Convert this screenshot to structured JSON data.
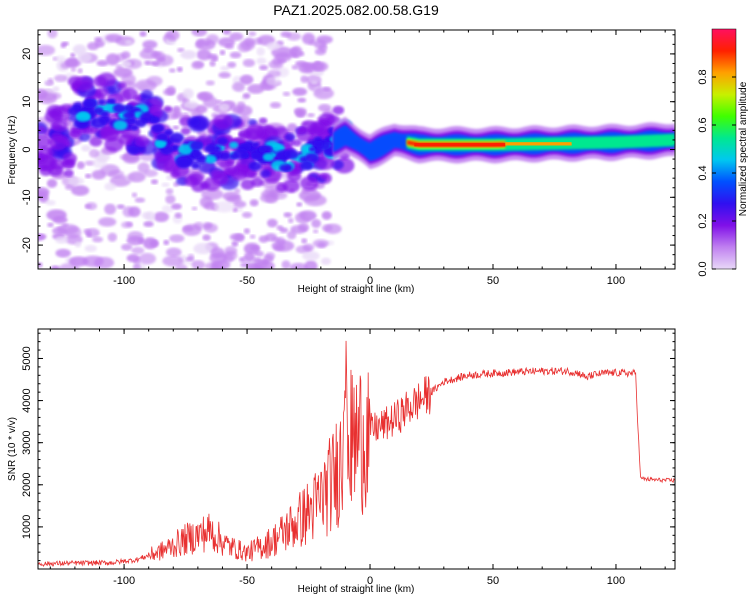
{
  "title": "PAZ1.2025.082.00.58.G19",
  "chart_data": [
    {
      "type": "heatmap",
      "xlabel": "Height of straight line (km)",
      "ylabel": "Frequency (Hz)",
      "xlim": [
        -135,
        124
      ],
      "ylim": [
        -25,
        25
      ],
      "xticks": [
        -100,
        -50,
        0,
        50,
        100
      ],
      "yticks": [
        -20,
        -10,
        0,
        10,
        20
      ],
      "colorbar": {
        "label": "Normalized spectral amplitude",
        "range": [
          0,
          1
        ],
        "ticks": [
          0.0,
          0.2,
          0.4,
          0.6,
          0.8
        ],
        "colormap": [
          "#e8d8f8",
          "#c080f0",
          "#8010e8",
          "#3010f0",
          "#0050ff",
          "#00c8f0",
          "#00e890",
          "#40ff00",
          "#c8f000",
          "#ffa000",
          "#ff2000",
          "#ff1060"
        ]
      },
      "ridge": {
        "description_points": [
          {
            "x": -120,
            "y": 8
          },
          {
            "x": -100,
            "y": 7.5
          },
          {
            "x": -88,
            "y": 5
          },
          {
            "x": -80,
            "y": 0.5
          },
          {
            "x": -70,
            "y": -1.5
          },
          {
            "x": -60,
            "y": 0
          },
          {
            "x": -50,
            "y": -1
          },
          {
            "x": -40,
            "y": -1
          },
          {
            "x": -30,
            "y": -2
          },
          {
            "x": -20,
            "y": 0
          },
          {
            "x": -10,
            "y": 3
          },
          {
            "x": 0,
            "y": -0.5
          },
          {
            "x": 10,
            "y": 2
          },
          {
            "x": 20,
            "y": 1
          },
          {
            "x": 50,
            "y": 1
          },
          {
            "x": 100,
            "y": 1.5
          },
          {
            "x": 124,
            "y": 2
          }
        ]
      }
    },
    {
      "type": "line",
      "xlabel": "Height of straight line (km)",
      "ylabel": "SNR (10 * v/v)",
      "xlim": [
        -135,
        124
      ],
      "ylim": [
        0,
        5700
      ],
      "xticks": [
        -100,
        -50,
        0,
        50,
        100
      ],
      "yticks": [
        1000,
        2000,
        3000,
        4000,
        5000
      ],
      "color": "#e83030",
      "series": [
        {
          "x": [
            -135,
            -120,
            -105,
            -95,
            -85,
            -75,
            -65,
            -58,
            -50,
            -40,
            -30,
            -22,
            -15,
            -10,
            -5,
            0,
            5,
            10,
            15,
            20,
            25,
            30,
            40,
            50,
            60,
            70,
            80,
            85,
            88,
            90,
            95,
            100,
            105,
            108,
            109,
            110,
            115,
            124
          ],
          "values": [
            120,
            140,
            150,
            220,
            420,
            700,
            900,
            560,
            380,
            650,
            1100,
            1500,
            2100,
            2900,
            3100,
            3300,
            3400,
            3550,
            3800,
            4000,
            4200,
            4450,
            4600,
            4650,
            4680,
            4700,
            4700,
            4650,
            4550,
            4600,
            4650,
            4660,
            4650,
            4640,
            3300,
            2150,
            2120,
            2100
          ]
        }
      ]
    }
  ]
}
